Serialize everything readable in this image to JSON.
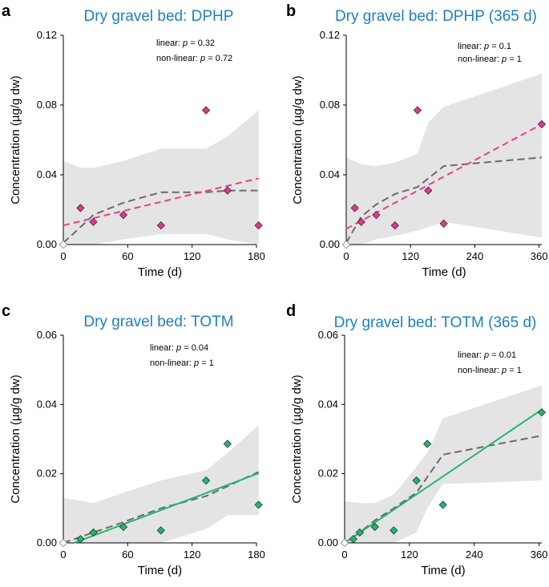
{
  "colors": {
    "title": "#1f7fc4",
    "band": "#e4e4e4",
    "pink_marker": "#e8338f",
    "pink_fit": "#ee3d8f",
    "green_marker": "#1db86a",
    "green_fit": "#22b86a",
    "nonlinear": "#6b6b6b",
    "axis": "#000000"
  },
  "chart_data": [
    {
      "panel": "a",
      "type": "scatter",
      "title": "Dry gravel bed: DPHP",
      "xlabel": "Time (d)",
      "ylabel": "Concentration (µg/g dw)",
      "xlim": [
        0,
        180
      ],
      "ylim": [
        0,
        0.12
      ],
      "xticks": [
        0,
        60,
        120,
        180
      ],
      "yticks": [
        "0.00",
        "0.04",
        "0.08",
        "0.12"
      ],
      "stats": {
        "linear_prefix": "linear: ",
        "nonlinear_prefix": "non-linear: ",
        "p_symbol": "p",
        "eq": " = ",
        "linear_p": "0.32",
        "nonlinear_p": "0.72"
      },
      "marker": "pink",
      "points": [
        [
          0,
          0.0
        ],
        [
          16,
          0.021
        ],
        [
          28,
          0.013
        ],
        [
          56,
          0.017
        ],
        [
          91,
          0.011
        ],
        [
          133,
          0.077
        ],
        [
          153,
          0.031
        ],
        [
          182,
          0.011
        ]
      ],
      "linear_fit": {
        "style": "dashed",
        "color": "pink",
        "x": [
          0,
          182
        ],
        "y": [
          0.011,
          0.038
        ]
      },
      "nonlinear_fit": {
        "x": [
          0,
          16,
          28,
          56,
          91,
          133,
          153,
          182
        ],
        "y": [
          0.001,
          0.01,
          0.017,
          0.024,
          0.03,
          0.03,
          0.031,
          0.031
        ]
      },
      "ci_band": {
        "x": [
          0,
          16,
          28,
          56,
          91,
          133,
          153,
          182
        ],
        "upper": [
          0.048,
          0.044,
          0.044,
          0.048,
          0.055,
          0.055,
          0.062,
          0.077
        ],
        "lower": [
          0.0,
          0.0,
          0.0,
          0.003,
          0.006,
          0.006,
          0.003,
          0.0
        ]
      }
    },
    {
      "panel": "b",
      "type": "scatter",
      "title": "Dry gravel bed: DPHP (365 d)",
      "xlabel": "Time (d)",
      "ylabel": "Concentration (µg/g dw)",
      "xlim": [
        0,
        365
      ],
      "ylim": [
        0,
        0.12
      ],
      "xticks": [
        0,
        120,
        240,
        360
      ],
      "yticks": [
        "0.00",
        "0.04",
        "0.08",
        "0.12"
      ],
      "stats": {
        "linear_prefix": "linear: ",
        "nonlinear_prefix": "non-linear: ",
        "p_symbol": "p",
        "eq": " = ",
        "linear_p": "0.1",
        "nonlinear_p": "1"
      },
      "marker": "pink",
      "points": [
        [
          0,
          0.0
        ],
        [
          16,
          0.021
        ],
        [
          28,
          0.013
        ],
        [
          56,
          0.017
        ],
        [
          91,
          0.011
        ],
        [
          133,
          0.077
        ],
        [
          153,
          0.031
        ],
        [
          182,
          0.012
        ],
        [
          365,
          0.069
        ]
      ],
      "linear_fit": {
        "style": "dashed",
        "color": "pink",
        "x": [
          0,
          365
        ],
        "y": [
          0.009,
          0.069
        ]
      },
      "nonlinear_fit": {
        "x": [
          0,
          28,
          56,
          91,
          133,
          182,
          365
        ],
        "y": [
          0.001,
          0.016,
          0.023,
          0.029,
          0.033,
          0.045,
          0.05
        ]
      },
      "ci_band": {
        "x": [
          0,
          28,
          56,
          91,
          133,
          153,
          182,
          365
        ],
        "upper": [
          0.05,
          0.046,
          0.045,
          0.047,
          0.052,
          0.07,
          0.079,
          0.098
        ],
        "lower": [
          0.0,
          0.0,
          0.003,
          0.005,
          0.008,
          0.01,
          0.013,
          0.004
        ]
      }
    },
    {
      "panel": "c",
      "type": "scatter",
      "title": "Dry gravel bed: TOTM",
      "xlabel": "Time (d)",
      "ylabel": "Concentration (µg/g dw)",
      "xlim": [
        0,
        180
      ],
      "ylim": [
        0,
        0.06
      ],
      "xticks": [
        0,
        60,
        120,
        180
      ],
      "yticks": [
        "0.00",
        "0.02",
        "0.04",
        "0.06"
      ],
      "stats": {
        "linear_prefix": "linear: ",
        "nonlinear_prefix": "non-linear: ",
        "p_symbol": "p",
        "eq": " = ",
        "linear_p": "0.04",
        "nonlinear_p": "1"
      },
      "marker": "green",
      "points": [
        [
          0,
          0.0
        ],
        [
          16,
          0.0011
        ],
        [
          28,
          0.003
        ],
        [
          56,
          0.0046
        ],
        [
          91,
          0.0036
        ],
        [
          133,
          0.018
        ],
        [
          153,
          0.0286
        ],
        [
          182,
          0.011
        ]
      ],
      "linear_fit": {
        "style": "solid",
        "color": "green",
        "x": [
          10,
          182
        ],
        "y": [
          0.0,
          0.0201
        ]
      },
      "nonlinear_fit": {
        "x": [
          0,
          28,
          56,
          91,
          133,
          182
        ],
        "y": [
          0.0,
          0.003,
          0.006,
          0.01,
          0.0135,
          0.0205
        ]
      },
      "ci_band": {
        "x": [
          0,
          28,
          56,
          91,
          133,
          153,
          182
        ],
        "upper": [
          0.013,
          0.0115,
          0.0145,
          0.018,
          0.021,
          0.026,
          0.034
        ],
        "lower": [
          0.0,
          0.0,
          0.0,
          0.0,
          0.004,
          0.008,
          0.008
        ]
      }
    },
    {
      "panel": "d",
      "type": "scatter",
      "title": "Dry gravel bed: TOTM (365 d)",
      "xlabel": "Time (d)",
      "ylabel": "Concentration (µg/g dw)",
      "xlim": [
        0,
        365
      ],
      "ylim": [
        0,
        0.06
      ],
      "xticks": [
        0,
        120,
        240,
        360
      ],
      "yticks": [
        "0.00",
        "0.02",
        "0.04",
        "0.06"
      ],
      "stats": {
        "linear_prefix": "linear: ",
        "nonlinear_prefix": "non-linear: ",
        "p_symbol": "p",
        "eq": " = ",
        "linear_p": "0.01",
        "nonlinear_p": "1"
      },
      "marker": "green",
      "points": [
        [
          0,
          0.0
        ],
        [
          16,
          0.0011
        ],
        [
          28,
          0.003
        ],
        [
          56,
          0.0046
        ],
        [
          91,
          0.0036
        ],
        [
          133,
          0.018
        ],
        [
          153,
          0.0286
        ],
        [
          182,
          0.011
        ],
        [
          365,
          0.0377
        ]
      ],
      "linear_fit": {
        "style": "solid",
        "color": "green",
        "x": [
          0,
          365
        ],
        "y": [
          -0.0008,
          0.0385
        ]
      },
      "nonlinear_fit": {
        "x": [
          0,
          28,
          56,
          91,
          133,
          182,
          365
        ],
        "y": [
          0.0,
          0.003,
          0.0065,
          0.01,
          0.0145,
          0.0255,
          0.031
        ]
      },
      "ci_band": {
        "x": [
          0,
          28,
          56,
          91,
          133,
          153,
          182,
          365
        ],
        "upper": [
          0.012,
          0.0115,
          0.0115,
          0.014,
          0.022,
          0.026,
          0.036,
          0.0455
        ],
        "lower": [
          0.0,
          0.0,
          0.0,
          0.0,
          0.003,
          0.01,
          0.017,
          0.018
        ]
      }
    }
  ]
}
